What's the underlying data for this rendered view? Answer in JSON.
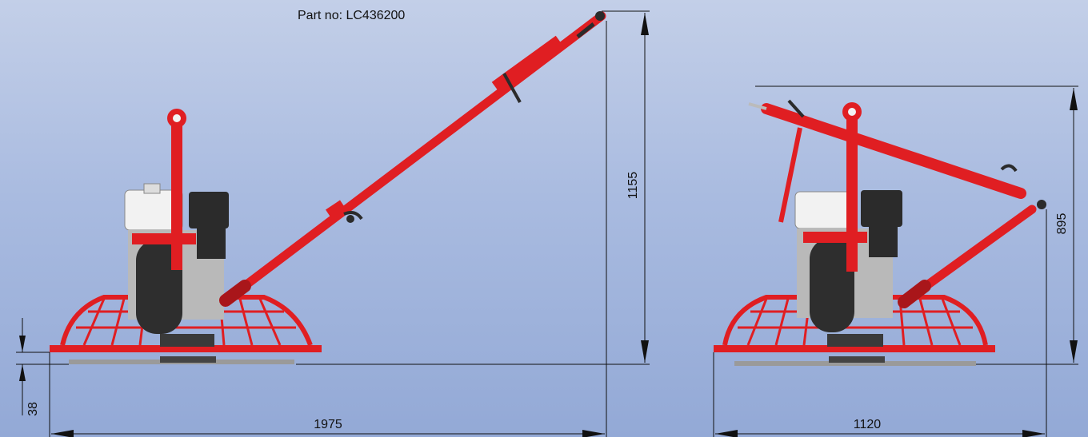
{
  "header": {
    "part_number": "Part no: LC436200"
  },
  "dimensions": {
    "side_total_length": "1975",
    "side_total_height": "1155",
    "side_blade_height": "38",
    "folded_total_length": "1120",
    "folded_total_height": "895"
  },
  "colors": {
    "frame_red": "#e01e22",
    "engine_white": "#f2f2f2",
    "engine_dark": "#2b2b2b",
    "blade_gray": "#9a9a9a",
    "background_top": "#c3cfe8",
    "background_bottom": "#93a9d6"
  },
  "views": [
    "side-view-extended",
    "side-view-folded"
  ]
}
